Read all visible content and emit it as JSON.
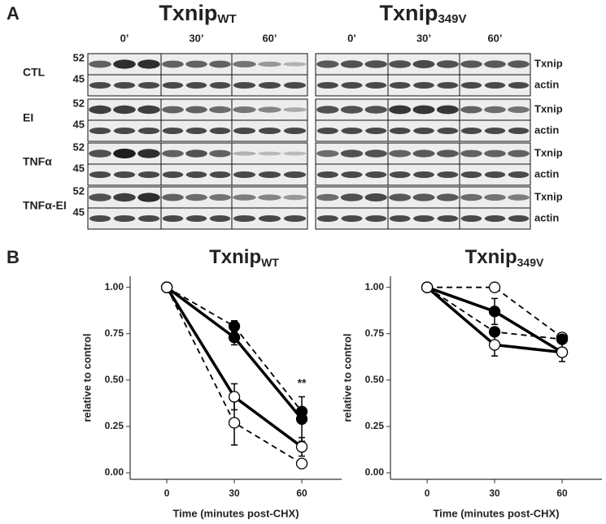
{
  "panel_a": {
    "label": "A",
    "groups": [
      {
        "title": "Txnip",
        "title_sub": "WT",
        "times": [
          "0’",
          "30’",
          "60’"
        ]
      },
      {
        "title": "Txnip",
        "title_sub": "349V",
        "times": [
          "0’",
          "30’",
          "60’"
        ]
      }
    ],
    "rows": [
      {
        "label": "CTL",
        "markers": [
          52,
          45
        ],
        "bands": [
          "Txnip",
          "actin"
        ]
      },
      {
        "label": "EI",
        "markers": [
          52,
          45
        ],
        "bands": [
          "Txnip",
          "actin"
        ]
      },
      {
        "label": "TNFα",
        "markers": [
          52,
          45
        ],
        "bands": [
          "Txnip",
          "actin"
        ]
      },
      {
        "label": "TNFα-EI",
        "markers": [
          52,
          45
        ],
        "bands": [
          "Txnip",
          "actin"
        ]
      }
    ]
  },
  "panel_b_label": "B",
  "chart_data": [
    {
      "type": "line",
      "title": "Txnip",
      "title_sub": "WT",
      "x_label": "Time (minutes post-CHX)",
      "y_label": "relative to control",
      "x": [
        0,
        30,
        60
      ],
      "xlim": [
        -16.3,
        77.7
      ],
      "ylim": [
        -0.035,
        1.06
      ],
      "xticks": [
        0,
        30,
        60
      ],
      "yticks": [
        {
          "value": 0,
          "label": "0.00"
        },
        {
          "value": 0.25,
          "label": "0.25"
        },
        {
          "value": 0.5,
          "label": "0.50"
        },
        {
          "value": 0.75,
          "label": "0.75"
        },
        {
          "value": 1,
          "label": "1.00"
        }
      ],
      "series": [
        {
          "color": "#000000",
          "dashed": true,
          "marker": "filled",
          "values": [
            1.0,
            0.79,
            0.33
          ],
          "errors": [
            null,
            0.03,
            null
          ]
        },
        {
          "color": "#000000",
          "dashed": false,
          "marker": "filled",
          "values": [
            1.0,
            0.73,
            0.29
          ],
          "errors": [
            null,
            0.04,
            0.12
          ]
        },
        {
          "color": "#000000",
          "dashed": false,
          "marker": "open",
          "values": [
            1.0,
            0.41,
            0.14
          ],
          "errors": [
            null,
            0.07,
            0.05
          ]
        },
        {
          "color": "#000000",
          "dashed": true,
          "marker": "open",
          "values": [
            1.0,
            0.27,
            0.05
          ],
          "errors": [
            null,
            0.12,
            null
          ]
        }
      ],
      "annotations": [
        {
          "text": "**",
          "x": 60,
          "y": 0.48
        }
      ]
    },
    {
      "type": "line",
      "title": "Txnip",
      "title_sub": "349V",
      "x_label": "Time (minutes post-CHX)",
      "y_label": "relative to control",
      "x": [
        0,
        30,
        60
      ],
      "xlim": [
        -16.3,
        77.7
      ],
      "ylim": [
        -0.035,
        1.06
      ],
      "xticks": [
        0,
        30,
        60
      ],
      "yticks": [
        {
          "value": 0,
          "label": "0.00"
        },
        {
          "value": 0.25,
          "label": "0.25"
        },
        {
          "value": 0.5,
          "label": "0.50"
        },
        {
          "value": 0.75,
          "label": "0.75"
        },
        {
          "value": 1,
          "label": "1.00"
        }
      ],
      "series": [
        {
          "color": "#000000",
          "dashed": true,
          "marker": "open",
          "values": [
            1.0,
            1.0,
            0.73
          ],
          "errors": [
            null,
            null,
            null
          ]
        },
        {
          "color": "#000000",
          "dashed": false,
          "marker": "filled",
          "values": [
            1.0,
            0.87,
            0.65
          ],
          "errors": [
            null,
            0.07,
            null
          ]
        },
        {
          "color": "#000000",
          "dashed": true,
          "marker": "filled",
          "values": [
            1.0,
            0.76,
            0.72
          ],
          "errors": [
            null,
            null,
            null
          ]
        },
        {
          "color": "#000000",
          "dashed": false,
          "marker": "open",
          "values": [
            1.0,
            0.69,
            0.65
          ],
          "errors": [
            null,
            0.06,
            0.05
          ]
        }
      ],
      "annotations": []
    }
  ]
}
